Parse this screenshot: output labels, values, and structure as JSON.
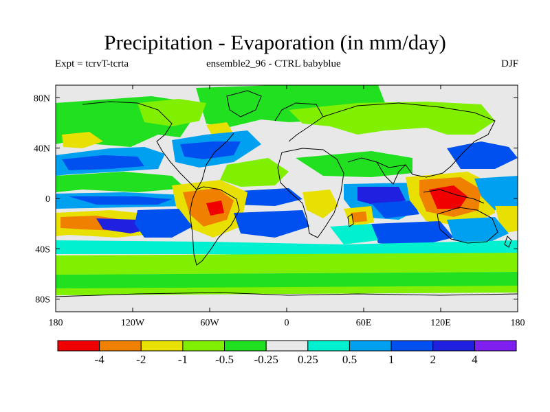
{
  "title": "Precipitation - Evaporation (in mm/day)",
  "subtitle_left": "Expt = tcrvT-tcrta",
  "subtitle_center": "ensemble2_96 - CTRL babyblue",
  "subtitle_right": "DJF",
  "x_ticks": [
    "180",
    "120W",
    "60W",
    "0",
    "60E",
    "120E",
    "180"
  ],
  "y_ticks": [
    "80N",
    "40N",
    "0",
    "40S",
    "80S"
  ],
  "colorbar": {
    "colors": [
      "#f00000",
      "#f08000",
      "#e8e000",
      "#80f000",
      "#20e020",
      "#e8e8e8",
      "#00f0d0",
      "#00a0f0",
      "#0050f0",
      "#2020e0",
      "#8020f0"
    ],
    "labels": [
      "-4",
      "-2",
      "-1",
      "-0.5",
      "-0.25",
      "0.25",
      "0.5",
      "1",
      "2",
      "4"
    ]
  },
  "chart_data": {
    "type": "heatmap",
    "title": "Precipitation - Evaporation (in mm/day)",
    "season": "DJF",
    "x_range": [
      -180,
      180
    ],
    "y_range": [
      -90,
      90
    ],
    "levels": [
      -4,
      -2,
      -1,
      -0.5,
      -0.25,
      0.25,
      0.5,
      1,
      2,
      4
    ]
  }
}
